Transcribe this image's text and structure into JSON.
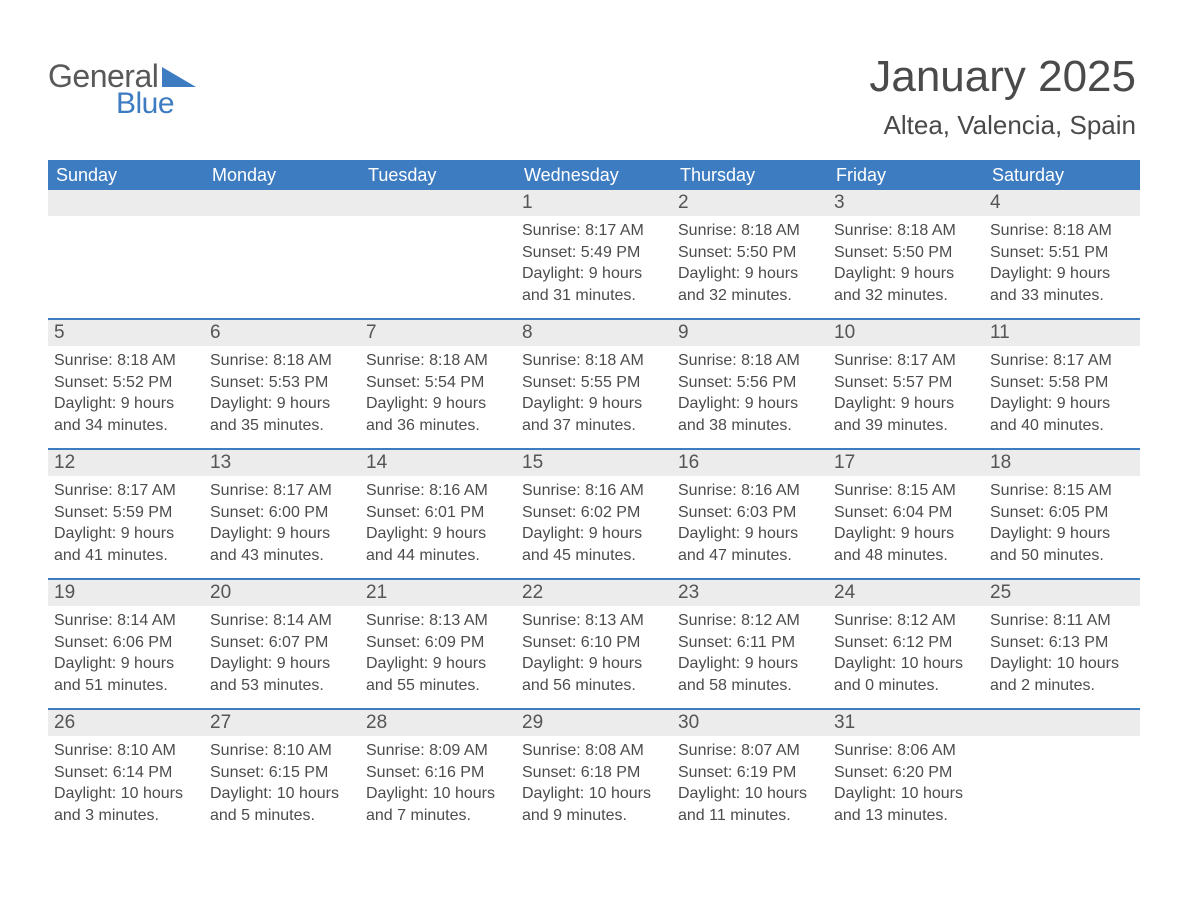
{
  "logo": {
    "text1": "General",
    "text2": "Blue",
    "color_gray": "#595959",
    "color_blue": "#3e7cc2"
  },
  "title": "January 2025",
  "location": "Altea, Valencia, Spain",
  "header_bg": "#3e7cc2",
  "daynum_bg": "#ececec",
  "text_color": "#4a4a4a",
  "days_of_week": [
    "Sunday",
    "Monday",
    "Tuesday",
    "Wednesday",
    "Thursday",
    "Friday",
    "Saturday"
  ],
  "weeks": [
    [
      null,
      null,
      null,
      {
        "n": "1",
        "sunrise": "8:17 AM",
        "sunset": "5:49 PM",
        "dl1": "Daylight: 9 hours",
        "dl2": "and 31 minutes."
      },
      {
        "n": "2",
        "sunrise": "8:18 AM",
        "sunset": "5:50 PM",
        "dl1": "Daylight: 9 hours",
        "dl2": "and 32 minutes."
      },
      {
        "n": "3",
        "sunrise": "8:18 AM",
        "sunset": "5:50 PM",
        "dl1": "Daylight: 9 hours",
        "dl2": "and 32 minutes."
      },
      {
        "n": "4",
        "sunrise": "8:18 AM",
        "sunset": "5:51 PM",
        "dl1": "Daylight: 9 hours",
        "dl2": "and 33 minutes."
      }
    ],
    [
      {
        "n": "5",
        "sunrise": "8:18 AM",
        "sunset": "5:52 PM",
        "dl1": "Daylight: 9 hours",
        "dl2": "and 34 minutes."
      },
      {
        "n": "6",
        "sunrise": "8:18 AM",
        "sunset": "5:53 PM",
        "dl1": "Daylight: 9 hours",
        "dl2": "and 35 minutes."
      },
      {
        "n": "7",
        "sunrise": "8:18 AM",
        "sunset": "5:54 PM",
        "dl1": "Daylight: 9 hours",
        "dl2": "and 36 minutes."
      },
      {
        "n": "8",
        "sunrise": "8:18 AM",
        "sunset": "5:55 PM",
        "dl1": "Daylight: 9 hours",
        "dl2": "and 37 minutes."
      },
      {
        "n": "9",
        "sunrise": "8:18 AM",
        "sunset": "5:56 PM",
        "dl1": "Daylight: 9 hours",
        "dl2": "and 38 minutes."
      },
      {
        "n": "10",
        "sunrise": "8:17 AM",
        "sunset": "5:57 PM",
        "dl1": "Daylight: 9 hours",
        "dl2": "and 39 minutes."
      },
      {
        "n": "11",
        "sunrise": "8:17 AM",
        "sunset": "5:58 PM",
        "dl1": "Daylight: 9 hours",
        "dl2": "and 40 minutes."
      }
    ],
    [
      {
        "n": "12",
        "sunrise": "8:17 AM",
        "sunset": "5:59 PM",
        "dl1": "Daylight: 9 hours",
        "dl2": "and 41 minutes."
      },
      {
        "n": "13",
        "sunrise": "8:17 AM",
        "sunset": "6:00 PM",
        "dl1": "Daylight: 9 hours",
        "dl2": "and 43 minutes."
      },
      {
        "n": "14",
        "sunrise": "8:16 AM",
        "sunset": "6:01 PM",
        "dl1": "Daylight: 9 hours",
        "dl2": "and 44 minutes."
      },
      {
        "n": "15",
        "sunrise": "8:16 AM",
        "sunset": "6:02 PM",
        "dl1": "Daylight: 9 hours",
        "dl2": "and 45 minutes."
      },
      {
        "n": "16",
        "sunrise": "8:16 AM",
        "sunset": "6:03 PM",
        "dl1": "Daylight: 9 hours",
        "dl2": "and 47 minutes."
      },
      {
        "n": "17",
        "sunrise": "8:15 AM",
        "sunset": "6:04 PM",
        "dl1": "Daylight: 9 hours",
        "dl2": "and 48 minutes."
      },
      {
        "n": "18",
        "sunrise": "8:15 AM",
        "sunset": "6:05 PM",
        "dl1": "Daylight: 9 hours",
        "dl2": "and 50 minutes."
      }
    ],
    [
      {
        "n": "19",
        "sunrise": "8:14 AM",
        "sunset": "6:06 PM",
        "dl1": "Daylight: 9 hours",
        "dl2": "and 51 minutes."
      },
      {
        "n": "20",
        "sunrise": "8:14 AM",
        "sunset": "6:07 PM",
        "dl1": "Daylight: 9 hours",
        "dl2": "and 53 minutes."
      },
      {
        "n": "21",
        "sunrise": "8:13 AM",
        "sunset": "6:09 PM",
        "dl1": "Daylight: 9 hours",
        "dl2": "and 55 minutes."
      },
      {
        "n": "22",
        "sunrise": "8:13 AM",
        "sunset": "6:10 PM",
        "dl1": "Daylight: 9 hours",
        "dl2": "and 56 minutes."
      },
      {
        "n": "23",
        "sunrise": "8:12 AM",
        "sunset": "6:11 PM",
        "dl1": "Daylight: 9 hours",
        "dl2": "and 58 minutes."
      },
      {
        "n": "24",
        "sunrise": "8:12 AM",
        "sunset": "6:12 PM",
        "dl1": "Daylight: 10 hours",
        "dl2": "and 0 minutes."
      },
      {
        "n": "25",
        "sunrise": "8:11 AM",
        "sunset": "6:13 PM",
        "dl1": "Daylight: 10 hours",
        "dl2": "and 2 minutes."
      }
    ],
    [
      {
        "n": "26",
        "sunrise": "8:10 AM",
        "sunset": "6:14 PM",
        "dl1": "Daylight: 10 hours",
        "dl2": "and 3 minutes."
      },
      {
        "n": "27",
        "sunrise": "8:10 AM",
        "sunset": "6:15 PM",
        "dl1": "Daylight: 10 hours",
        "dl2": "and 5 minutes."
      },
      {
        "n": "28",
        "sunrise": "8:09 AM",
        "sunset": "6:16 PM",
        "dl1": "Daylight: 10 hours",
        "dl2": "and 7 minutes."
      },
      {
        "n": "29",
        "sunrise": "8:08 AM",
        "sunset": "6:18 PM",
        "dl1": "Daylight: 10 hours",
        "dl2": "and 9 minutes."
      },
      {
        "n": "30",
        "sunrise": "8:07 AM",
        "sunset": "6:19 PM",
        "dl1": "Daylight: 10 hours",
        "dl2": "and 11 minutes."
      },
      {
        "n": "31",
        "sunrise": "8:06 AM",
        "sunset": "6:20 PM",
        "dl1": "Daylight: 10 hours",
        "dl2": "and 13 minutes."
      },
      null
    ]
  ],
  "labels": {
    "sunrise_prefix": "Sunrise: ",
    "sunset_prefix": "Sunset: "
  }
}
